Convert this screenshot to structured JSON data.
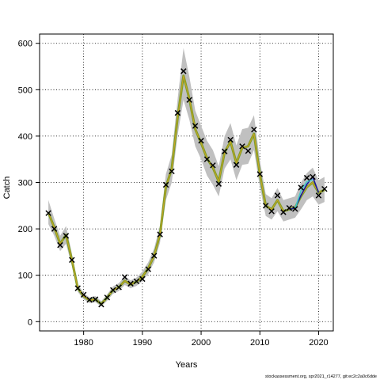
{
  "chart_data": {
    "type": "line",
    "title": "",
    "xlabel": "Years",
    "ylabel": "Catch",
    "xlim": [
      1972.5,
      2022.5
    ],
    "ylim": [
      -20,
      620
    ],
    "x_ticks": [
      1980,
      1990,
      2000,
      2010,
      2020
    ],
    "y_ticks": [
      0,
      100,
      200,
      300,
      400,
      500,
      600
    ],
    "grid": true,
    "footer": "stockassessment.org, spr2021_r14277, git:ec2c2a0c6dde",
    "colors": {
      "band": "#c0c0c0",
      "fit_line": "#7aa02a",
      "fit_line_inner": "#e0a020",
      "retro_1": "#1a1a9a",
      "retro_2": "#40c8c8",
      "observed_marker": "#000000",
      "grid": "#000000"
    },
    "fit": {
      "x": [
        1974,
        1975,
        1976,
        1977,
        1978,
        1979,
        1980,
        1981,
        1982,
        1983,
        1984,
        1985,
        1986,
        1987,
        1988,
        1989,
        1990,
        1991,
        1992,
        1993,
        1994,
        1995,
        1996,
        1997,
        1998,
        1999,
        2000,
        2001,
        2002,
        2003,
        2004,
        2005,
        2006,
        2007,
        2008,
        2009,
        2010,
        2011,
        2012,
        2013,
        2014,
        2015,
        2016,
        2017,
        2018,
        2019,
        2020,
        2021
      ],
      "y": [
        235,
        203,
        168,
        187,
        133,
        72,
        55,
        46,
        48,
        38,
        52,
        68,
        74,
        88,
        80,
        86,
        97,
        115,
        142,
        188,
        290,
        330,
        440,
        530,
        480,
        415,
        385,
        352,
        332,
        302,
        365,
        388,
        342,
        375,
        378,
        405,
        318,
        250,
        242,
        262,
        238,
        242,
        246,
        270,
        290,
        300,
        278,
        284
      ],
      "lower": [
        210,
        185,
        152,
        168,
        120,
        64,
        48,
        40,
        42,
        33,
        45,
        60,
        66,
        79,
        72,
        77,
        87,
        103,
        128,
        170,
        262,
        300,
        402,
        478,
        435,
        378,
        350,
        315,
        295,
        270,
        330,
        350,
        305,
        338,
        340,
        370,
        290,
        228,
        220,
        238,
        216,
        220,
        224,
        242,
        262,
        270,
        252,
        258
      ],
      "upper": [
        262,
        222,
        185,
        206,
        147,
        81,
        62,
        52,
        55,
        44,
        59,
        76,
        83,
        98,
        89,
        95,
        108,
        128,
        158,
        207,
        318,
        360,
        480,
        590,
        528,
        455,
        422,
        390,
        370,
        335,
        400,
        428,
        380,
        415,
        418,
        445,
        348,
        275,
        266,
        288,
        262,
        266,
        270,
        300,
        320,
        332,
        305,
        312
      ]
    },
    "retro_series": [
      {
        "x": [
          2015,
          2016,
          2017,
          2018,
          2019,
          2020
        ],
        "y": [
          242,
          245,
          272,
          296,
          312,
          278
        ]
      },
      {
        "x": [
          2016,
          2017,
          2018,
          2019
        ],
        "y": [
          244,
          282,
          302,
          306
        ]
      }
    ],
    "observed": {
      "x": [
        1974,
        1975,
        1976,
        1977,
        1978,
        1979,
        1980,
        1981,
        1982,
        1983,
        1984,
        1985,
        1986,
        1987,
        1988,
        1989,
        1990,
        1991,
        1992,
        1993,
        1994,
        1995,
        1996,
        1997,
        1998,
        1999,
        2000,
        2001,
        2002,
        2003,
        2004,
        2005,
        2006,
        2007,
        2008,
        2009,
        2010,
        2011,
        2012,
        2013,
        2014,
        2015,
        2016,
        2017,
        2018,
        2019,
        2020,
        2021
      ],
      "y": [
        234,
        200,
        165,
        185,
        133,
        72,
        58,
        47,
        48,
        37,
        52,
        68,
        74,
        96,
        82,
        87,
        92,
        113,
        142,
        188,
        295,
        324,
        450,
        540,
        478,
        422,
        390,
        350,
        337,
        297,
        367,
        392,
        338,
        378,
        368,
        414,
        318,
        250,
        238,
        272,
        236,
        245,
        243,
        289,
        310,
        312,
        272,
        286
      ]
    }
  }
}
